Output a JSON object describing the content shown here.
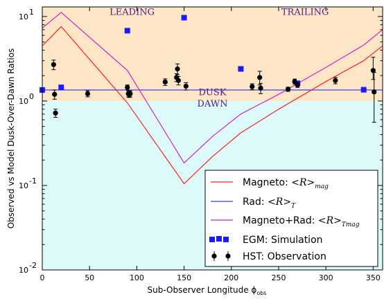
{
  "chart_data": {
    "type": "line",
    "xlabel": "Sub-Observer Longitude ϕ",
    "xlabel_sub": "obs",
    "ylabel": "Observed vs Model Dusk-Over-Dawn Ratios",
    "xlim": [
      0,
      360
    ],
    "ylim": [
      0.01,
      13
    ],
    "yscale": "log",
    "x_ticks": [
      0,
      50,
      100,
      150,
      200,
      250,
      300,
      350
    ],
    "y_ticks": [
      {
        "value": 0.01,
        "base": "10",
        "exp": "-2"
      },
      {
        "value": 0.1,
        "base": "10",
        "exp": "-1"
      },
      {
        "value": 1,
        "base": "10",
        "exp": "0"
      },
      {
        "value": 10,
        "base": "10",
        "exp": "1"
      }
    ],
    "regions": [
      {
        "from": 1,
        "to": 13,
        "color": "#fde6c6"
      },
      {
        "from": 0.01,
        "to": 1,
        "color": "#dcfafa"
      }
    ],
    "annotations": [
      {
        "text": "LEADING",
        "x": 95,
        "y": 10.5
      },
      {
        "text": "TRAILING",
        "x": 278,
        "y": 10.5
      },
      {
        "text": "DUSK",
        "x": 180,
        "y": 1.17
      },
      {
        "text": "DAWN",
        "x": 180,
        "y": 0.86
      }
    ],
    "series": [
      {
        "name": "Magneto",
        "math": "<R>",
        "math_sub": "mag",
        "kind": "line",
        "color": "#ff2020",
        "x": [
          0,
          20,
          90,
          150,
          180,
          210,
          250,
          300,
          340,
          360
        ],
        "y": [
          4.5,
          7.6,
          0.95,
          0.105,
          0.22,
          0.42,
          0.8,
          1.7,
          3.0,
          4.5
        ]
      },
      {
        "name": "Rad",
        "math": "<R>",
        "math_sub": "T",
        "kind": "line",
        "color": "#3c3cff",
        "x": [
          0,
          360
        ],
        "y": [
          1.35,
          1.35
        ]
      },
      {
        "name": "Magneto+Rad",
        "math": "<R>",
        "math_sub": "Tmag",
        "kind": "line",
        "color": "#cc22cc",
        "x": [
          0,
          20,
          90,
          150,
          180,
          210,
          250,
          300,
          340,
          360
        ],
        "y": [
          7.3,
          11.2,
          2.3,
          0.185,
          0.38,
          0.7,
          1.2,
          2.5,
          4.6,
          7.0
        ]
      },
      {
        "name": "EGM: Simulation",
        "kind": "square",
        "color": "#1a1aff",
        "x": [
          0,
          20,
          90,
          150,
          210,
          270,
          340
        ],
        "y": [
          1.35,
          1.45,
          6.8,
          9.7,
          2.4,
          1.62,
          1.36
        ]
      },
      {
        "name": "HST: Observation",
        "kind": "errorbar",
        "color": "#000000",
        "x": [
          12,
          13,
          14,
          48,
          90,
          91,
          92,
          93,
          130,
          142,
          143,
          144,
          152,
          222,
          230,
          231,
          260,
          267,
          270,
          310,
          350,
          351
        ],
        "y": [
          2.7,
          1.2,
          0.72,
          1.22,
          1.45,
          1.22,
          1.2,
          1.22,
          1.68,
          1.9,
          2.4,
          1.75,
          1.5,
          1.48,
          1.9,
          1.42,
          1.38,
          1.7,
          1.55,
          1.75,
          2.3,
          1.28
        ],
        "err_lo": [
          0.35,
          0.15,
          0.08,
          0.1,
          0.1,
          0.1,
          0.1,
          0.1,
          0.15,
          0.2,
          0.35,
          0.2,
          0.15,
          0.12,
          0.35,
          0.2,
          0.08,
          0.12,
          0.1,
          0.15,
          0.5,
          0.72
        ],
        "err_hi": [
          0.35,
          0.15,
          0.08,
          0.1,
          0.1,
          0.1,
          0.1,
          0.1,
          0.15,
          0.2,
          0.35,
          0.2,
          0.15,
          0.12,
          0.35,
          0.2,
          0.08,
          0.12,
          0.1,
          0.15,
          1.0,
          0.9
        ]
      }
    ],
    "legend": {
      "placement": "lower-right",
      "entries": [
        "Magneto",
        "Rad",
        "Magneto+Rad",
        "EGM: Simulation",
        "HST: Observation"
      ]
    }
  }
}
